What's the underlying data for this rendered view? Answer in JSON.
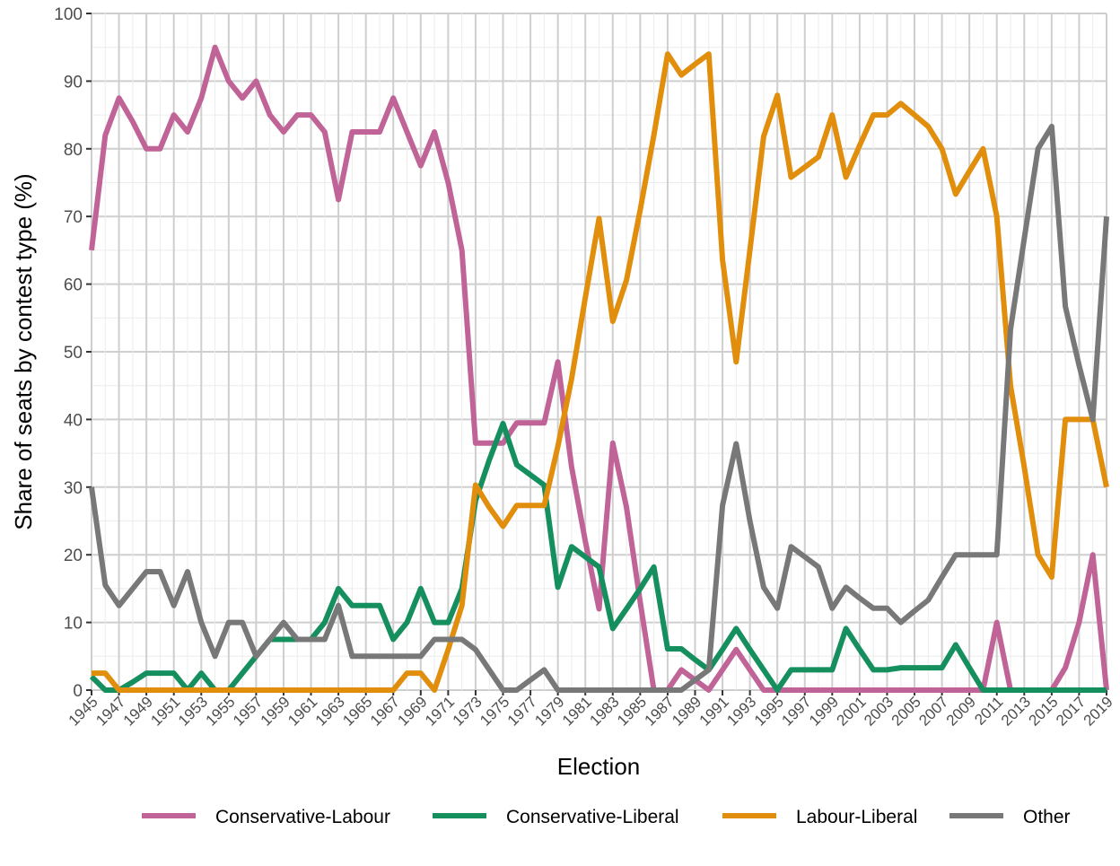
{
  "chart_data": {
    "type": "line",
    "title": "",
    "xlabel": "Election",
    "ylabel": "Share of seats by contest type (%)",
    "ylim": [
      0,
      100
    ],
    "xlim": [
      1945,
      2019
    ],
    "yticks": [
      0,
      10,
      20,
      30,
      40,
      50,
      60,
      70,
      80,
      90,
      100
    ],
    "xticks": [
      1945,
      1947,
      1949,
      1951,
      1953,
      1955,
      1957,
      1959,
      1961,
      1963,
      1965,
      1967,
      1969,
      1971,
      1973,
      1975,
      1977,
      1979,
      1981,
      1983,
      1985,
      1987,
      1989,
      1991,
      1993,
      1995,
      1997,
      1999,
      2001,
      2003,
      2005,
      2007,
      2009,
      2011,
      2013,
      2015,
      2017,
      2019
    ],
    "grid": true,
    "legend_position": "bottom",
    "x": [
      1945,
      1946,
      1947,
      1948,
      1949,
      1950,
      1951,
      1952,
      1953,
      1954,
      1955,
      1956,
      1957,
      1958,
      1959,
      1960,
      1961,
      1962,
      1963,
      1964,
      1965,
      1966,
      1967,
      1968,
      1969,
      1970,
      1971,
      1972,
      1973,
      1974,
      1975,
      1976,
      1977,
      1978,
      1979,
      1980,
      1981,
      1982,
      1983,
      1984,
      1985,
      1986,
      1987,
      1988,
      1989,
      1990,
      1991,
      1992,
      1993,
      1994,
      1995,
      1996,
      1997,
      1998,
      1999,
      2000,
      2001,
      2002,
      2003,
      2004,
      2005,
      2006,
      2007,
      2008,
      2009,
      2010,
      2011,
      2012,
      2013,
      2014,
      2015,
      2016,
      2017,
      2018,
      2019
    ],
    "series": [
      {
        "name": "Conservative-Labour",
        "color": "#C06498",
        "values": [
          65,
          82,
          87.5,
          84,
          80,
          80,
          85,
          82.5,
          87.5,
          95,
          90,
          87.5,
          90,
          85,
          82.5,
          85,
          85,
          82.5,
          72.5,
          82.5,
          82.5,
          82.5,
          87.5,
          82.5,
          77.5,
          82.5,
          75,
          65,
          36.5,
          36.5,
          36.5,
          39.5,
          39.5,
          39.5,
          48.5,
          33,
          22,
          12,
          36.5,
          27,
          13,
          0,
          0,
          3,
          1.5,
          0,
          3,
          6,
          3,
          0,
          0,
          0,
          0,
          0,
          0,
          0,
          0,
          0,
          0,
          0,
          0,
          0,
          0,
          0,
          0,
          0,
          10,
          0,
          0,
          0,
          0,
          3.3,
          10,
          20,
          0
        ]
      },
      {
        "name": "Conservative-Liberal",
        "color": "#168F5F",
        "values": [
          2,
          0,
          0,
          1.2,
          2.5,
          2.5,
          2.5,
          0,
          2.5,
          0,
          0,
          2.5,
          5,
          7.5,
          7.5,
          7.5,
          7.5,
          10,
          15,
          12.5,
          12.5,
          12.5,
          7.5,
          10,
          15,
          10,
          10,
          15,
          28,
          34,
          39.4,
          33.3,
          31.8,
          30.3,
          15.2,
          21.2,
          19.7,
          18.2,
          9.1,
          12,
          15,
          18.2,
          6.1,
          6.1,
          4.5,
          3,
          6,
          9.1,
          6,
          3,
          0,
          3,
          3,
          3,
          3,
          9.1,
          6,
          3,
          3,
          3.3,
          3.3,
          3.3,
          3.3,
          6.7,
          3.3,
          0,
          0,
          0,
          0,
          0,
          0,
          0,
          0,
          0,
          0
        ]
      },
      {
        "name": "Labour-Liberal",
        "color": "#E08E0B",
        "values": [
          2.5,
          2.5,
          0,
          0,
          0,
          0,
          0,
          0,
          0,
          0,
          0,
          0,
          0,
          0,
          0,
          0,
          0,
          0,
          0,
          0,
          0,
          0,
          0,
          2.5,
          2.5,
          0,
          6,
          12.5,
          30.3,
          27,
          24.2,
          27.3,
          27.3,
          27.3,
          36,
          46,
          58,
          69.7,
          54.5,
          60.6,
          71,
          82,
          94,
          90.9,
          92.5,
          94,
          63.6,
          48.5,
          65,
          81.8,
          87.9,
          75.8,
          77.3,
          78.8,
          85,
          75.8,
          80.5,
          85,
          85,
          86.7,
          85,
          83.3,
          80,
          73.3,
          76.7,
          80,
          70,
          45,
          33,
          20,
          16.7,
          40,
          40,
          40,
          30
        ]
      },
      {
        "name": "Other",
        "color": "#787878",
        "values": [
          30,
          15.5,
          12.5,
          15,
          17.5,
          17.5,
          12.5,
          17.5,
          10,
          5,
          10,
          10,
          5,
          7.5,
          10,
          7.5,
          7.5,
          7.5,
          12.5,
          5,
          5,
          5,
          5,
          5,
          5,
          7.5,
          7.5,
          7.5,
          6,
          3,
          0,
          0,
          1.5,
          3,
          0,
          0,
          0,
          0,
          0,
          0,
          0,
          0,
          0,
          0,
          1.5,
          3,
          27.3,
          36.4,
          25,
          15.2,
          12.1,
          21.2,
          19.7,
          18.2,
          12.1,
          15.2,
          13.6,
          12.1,
          12.1,
          10,
          11.7,
          13.3,
          16.7,
          20,
          20,
          20,
          20,
          53.3,
          66.7,
          80,
          83.3,
          56.7,
          48,
          40,
          70
        ]
      }
    ]
  }
}
